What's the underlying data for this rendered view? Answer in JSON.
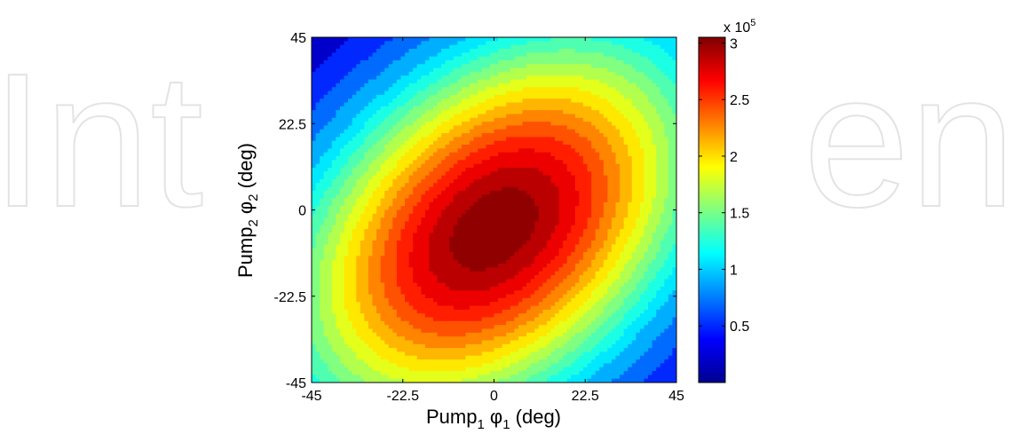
{
  "watermark": {
    "left_text": "Int",
    "right_text": "en"
  },
  "colormap": [
    "#00008f",
    "#0000ff",
    "#0080ff",
    "#00ffff",
    "#80ff80",
    "#ffff00",
    "#ff8000",
    "#ff0000",
    "#800000"
  ],
  "chart_data": {
    "type": "heatmap",
    "style": "filled-contour",
    "x": {
      "label_main": "Pump",
      "label_sub1": "1",
      "label_phi": " φ",
      "label_sub2": "1",
      "label_unit": "  (deg)",
      "range": [
        -45,
        45
      ],
      "ticks": [
        -45,
        -22.5,
        0,
        22.5,
        45
      ],
      "tick_labels": [
        "-45",
        "-22.5",
        "0",
        "22.5",
        "45"
      ]
    },
    "y": {
      "label_main": "Pump",
      "label_sub1": "2",
      "label_phi": " φ",
      "label_sub2": "2",
      "label_unit": "  (deg)",
      "range": [
        -45,
        45
      ],
      "ticks": [
        -45,
        -22.5,
        0,
        22.5,
        45
      ],
      "tick_labels": [
        "-45",
        "-22.5",
        "0",
        "22.5",
        "45"
      ]
    },
    "colorbar": {
      "multiplier_base": "x 10",
      "multiplier_exp": "5",
      "range": [
        0,
        3.05
      ],
      "ticks": [
        0.5,
        1,
        1.5,
        2,
        2.5,
        3
      ],
      "tick_labels": [
        "0.5",
        "1",
        "1.5",
        "2",
        "2.5",
        "3"
      ]
    },
    "contour_levels": [
      0.4,
      0.6,
      0.8,
      1.0,
      1.15,
      1.3,
      1.45,
      1.6,
      1.75,
      1.9,
      2.05,
      2.2,
      2.35,
      2.5,
      2.65,
      2.8,
      2.95
    ],
    "peak": {
      "x": 0,
      "y": -5,
      "value": 3.05
    },
    "grid": false,
    "legend": "colorbar-right"
  }
}
